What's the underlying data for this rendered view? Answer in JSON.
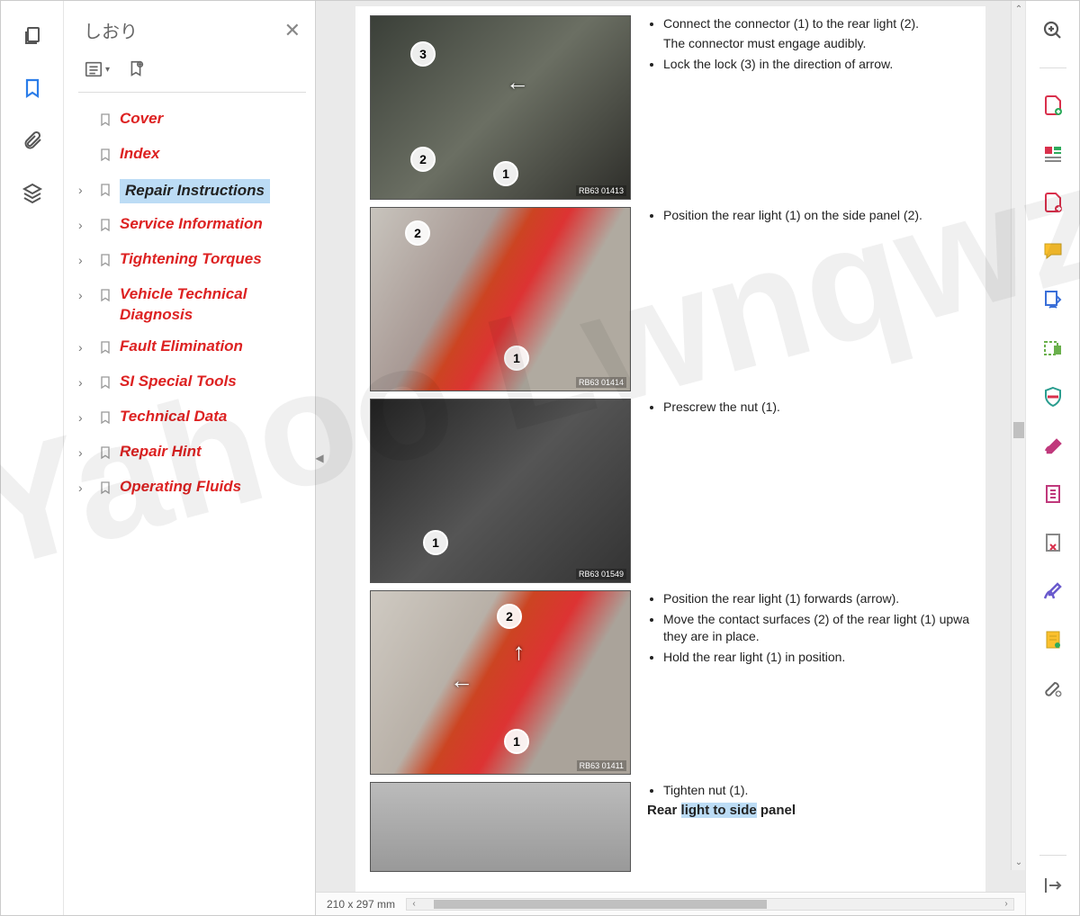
{
  "sidebar": {
    "title": "しおり",
    "items": [
      {
        "label": "Cover",
        "expandable": false
      },
      {
        "label": "Index",
        "expandable": false
      },
      {
        "label": "Repair Instructions",
        "expandable": true,
        "selected": true
      },
      {
        "label": "Service Information",
        "expandable": true
      },
      {
        "label": "Tightening Torques",
        "expandable": true
      },
      {
        "label": "Vehicle Technical Diagnosis",
        "expandable": true
      },
      {
        "label": "Fault Elimination",
        "expandable": true
      },
      {
        "label": "SI Special Tools",
        "expandable": true
      },
      {
        "label": "Technical Data",
        "expandable": true
      },
      {
        "label": "Repair Hint",
        "expandable": true
      },
      {
        "label": "Operating Fluids",
        "expandable": true
      }
    ]
  },
  "doc": {
    "steps": [
      {
        "imgref": "RB63 01413",
        "bullets": [
          "Connect the connector (1) to the rear light (2).",
          "Lock the lock (3) in the direction of arrow."
        ],
        "note": "The connector must engage audibly."
      },
      {
        "imgref": "RB63 01414",
        "bullets": [
          "Position the rear light (1) on the side panel (2)."
        ]
      },
      {
        "imgref": "RB63 01549",
        "bullets": [
          "Prescrew the nut (1)."
        ]
      },
      {
        "imgref": "RB63 01411",
        "bullets": [
          "Position the rear light (1) forwards (arrow).",
          "Move the contact surfaces (2) of the rear light (1) upwa they are in place.",
          "Hold the rear light (1) in position."
        ]
      },
      {
        "imgref": "",
        "bullets": [
          "Tighten nut (1)."
        ]
      }
    ],
    "table_title_pre": "Rear ",
    "table_title_hl": "light to side",
    "table_title_post": " panel",
    "page_size": "210 x 297 mm"
  },
  "watermark": "Yahoo Lwnqwz",
  "colors": {
    "bookmark_text": "#d22",
    "selection_bg": "#bcdcf5",
    "active_icon": "#2b7de9"
  }
}
